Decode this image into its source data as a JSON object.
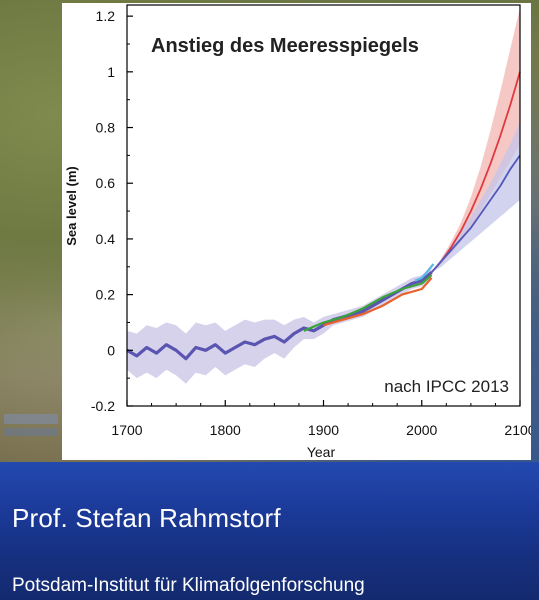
{
  "chart_data": {
    "type": "line",
    "title": "Anstieg des Meeresspiegels",
    "annotation": "nach IPCC 2013",
    "xlabel": "Year",
    "ylabel": "Sea level (m)",
    "xlim": [
      1700,
      2100
    ],
    "ylim": [
      -0.2,
      1.25
    ],
    "xticks": [
      "1700",
      "1800",
      "1900",
      "2000",
      "2100"
    ],
    "yticks": [
      "-0.2",
      "0",
      "0.2",
      "0.4",
      "0.6",
      "0.8",
      "1",
      "1.2"
    ],
    "grid": false,
    "colors": {
      "reconstruction": "#5a55b0",
      "reconstruction_band": "#c9c3e6",
      "tide_gauge_green": "#3aa33a",
      "tide_gauge_orange": "#e8602a",
      "satellite": "#5ab7e8",
      "rcp_high": "#e0393e",
      "rcp_high_band": "#f3b6b2",
      "rcp_low": "#5457b8",
      "rcp_low_band": "#c3c6ea"
    },
    "series": [
      {
        "key": "reconstruction",
        "x": [
          1700,
          1710,
          1720,
          1730,
          1740,
          1750,
          1760,
          1770,
          1780,
          1790,
          1800,
          1810,
          1820,
          1830,
          1840,
          1850,
          1860,
          1870,
          1880,
          1890,
          1900,
          1910,
          1920,
          1930,
          1940,
          1950,
          1960,
          1970,
          1980,
          1990,
          2000,
          2010
        ],
        "y": [
          0.0,
          -0.02,
          0.01,
          -0.01,
          0.02,
          0.0,
          -0.03,
          0.01,
          0.0,
          0.02,
          -0.01,
          0.01,
          0.03,
          0.02,
          0.04,
          0.05,
          0.03,
          0.06,
          0.08,
          0.07,
          0.09,
          0.11,
          0.12,
          0.13,
          0.14,
          0.16,
          0.18,
          0.2,
          0.22,
          0.24,
          0.25,
          0.28
        ],
        "lower": [
          -0.07,
          -0.1,
          -0.08,
          -0.1,
          -0.07,
          -0.09,
          -0.12,
          -0.08,
          -0.09,
          -0.06,
          -0.09,
          -0.07,
          -0.05,
          -0.06,
          -0.03,
          -0.01,
          -0.03,
          0.01,
          0.04,
          0.04,
          0.06,
          0.09,
          0.1,
          0.11,
          0.12,
          0.14,
          0.16,
          0.18,
          0.2,
          0.22,
          0.23,
          0.26
        ],
        "upper": [
          0.07,
          0.06,
          0.09,
          0.08,
          0.1,
          0.09,
          0.06,
          0.1,
          0.09,
          0.1,
          0.07,
          0.09,
          0.11,
          0.1,
          0.11,
          0.11,
          0.09,
          0.11,
          0.12,
          0.1,
          0.12,
          0.13,
          0.14,
          0.15,
          0.16,
          0.18,
          0.2,
          0.22,
          0.24,
          0.26,
          0.27,
          0.3
        ]
      },
      {
        "key": "tide_gauge_green",
        "x": [
          1880,
          1900,
          1920,
          1940,
          1960,
          1980,
          2000,
          2010
        ],
        "y": [
          0.07,
          0.1,
          0.12,
          0.15,
          0.19,
          0.22,
          0.24,
          0.27
        ]
      },
      {
        "key": "tide_gauge_orange",
        "x": [
          1900,
          1920,
          1940,
          1960,
          1980,
          2000,
          2010
        ],
        "y": [
          0.09,
          0.11,
          0.13,
          0.16,
          0.2,
          0.22,
          0.26
        ]
      },
      {
        "key": "satellite",
        "x": [
          1993,
          2000,
          2005,
          2012
        ],
        "y": [
          0.25,
          0.26,
          0.28,
          0.31
        ]
      },
      {
        "key": "rcp_high",
        "x": [
          2010,
          2020,
          2030,
          2040,
          2050,
          2060,
          2070,
          2080,
          2090,
          2100
        ],
        "y": [
          0.28,
          0.32,
          0.37,
          0.43,
          0.5,
          0.58,
          0.67,
          0.77,
          0.88,
          1.0
        ],
        "lower": [
          0.28,
          0.31,
          0.35,
          0.39,
          0.44,
          0.5,
          0.56,
          0.62,
          0.68,
          0.74
        ],
        "upper": [
          0.28,
          0.33,
          0.39,
          0.46,
          0.55,
          0.66,
          0.79,
          0.93,
          1.08,
          1.23
        ]
      },
      {
        "key": "rcp_low",
        "x": [
          2010,
          2020,
          2030,
          2040,
          2050,
          2060,
          2070,
          2080,
          2090,
          2100
        ],
        "y": [
          0.28,
          0.32,
          0.36,
          0.4,
          0.44,
          0.49,
          0.54,
          0.59,
          0.65,
          0.7
        ],
        "lower": [
          0.28,
          0.3,
          0.33,
          0.36,
          0.39,
          0.42,
          0.45,
          0.48,
          0.51,
          0.54
        ],
        "upper": [
          0.28,
          0.33,
          0.38,
          0.43,
          0.48,
          0.54,
          0.6,
          0.67,
          0.74,
          0.82
        ]
      }
    ]
  },
  "presenter": {
    "name": "Prof. Stefan Rahmstorf",
    "affiliation": "Potsdam-Institut für Klimafolgenforschung"
  }
}
